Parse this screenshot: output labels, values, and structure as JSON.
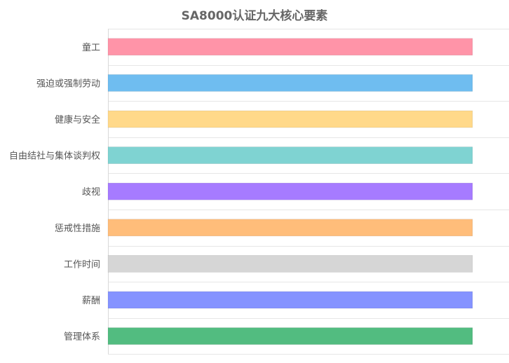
{
  "chart_data": {
    "type": "bar",
    "orientation": "horizontal",
    "title": "SA8000认证九大核心要素",
    "categories": [
      "童工",
      "强迫或强制劳动",
      "健康与安全",
      "自由结社与集体谈判权",
      "歧视",
      "惩戒性措施",
      "工作时间",
      "薪酬",
      "管理体系"
    ],
    "values": [
      1,
      1,
      1,
      1,
      1,
      1,
      1,
      1,
      1
    ],
    "colors": [
      "#ff94a8",
      "#6fbdf0",
      "#ffd98a",
      "#7fd3d2",
      "#a67bff",
      "#ffbd7a",
      "#d6d6d6",
      "#8593ff",
      "#52bc80"
    ],
    "xlim": [
      0,
      1
    ],
    "grid": true,
    "legend": "none",
    "xlabel": "",
    "ylabel": ""
  }
}
